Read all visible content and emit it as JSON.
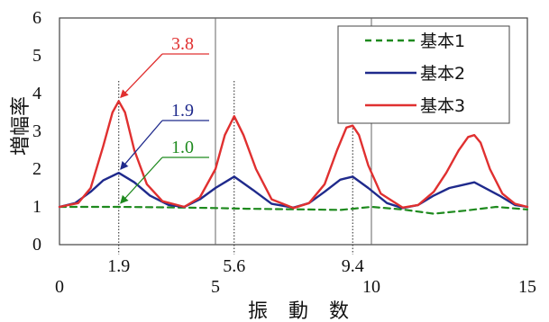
{
  "chart_data": {
    "type": "line",
    "xlabel": "振 動 数",
    "ylabel": "増幅率",
    "xlim": [
      0,
      15
    ],
    "ylim": [
      0,
      6
    ],
    "xticks": [
      "0",
      "5",
      "10",
      "15"
    ],
    "yticks": [
      "0",
      "1",
      "2",
      "3",
      "4",
      "5",
      "6"
    ],
    "grid": "vertical lines at 5 and 10",
    "legend_position": "top-right",
    "series": [
      {
        "name": "基本1",
        "style": "dashed",
        "color": "#1e8a1e",
        "x": [
          0,
          1,
          1.9,
          3,
          4,
          5,
          6,
          7,
          8,
          9,
          9.4,
          10,
          11,
          12,
          13,
          14,
          15
        ],
        "y": [
          1.0,
          1.0,
          1.0,
          0.99,
          0.98,
          0.97,
          0.95,
          0.94,
          0.93,
          0.92,
          0.95,
          1.0,
          0.93,
          0.82,
          0.9,
          1.0,
          0.93
        ]
      },
      {
        "name": "基本2",
        "style": "solid",
        "color": "#1f2a8c",
        "x": [
          0,
          0.5,
          1.0,
          1.4,
          1.9,
          2.4,
          2.9,
          3.5,
          4.0,
          4.5,
          5.0,
          5.6,
          6.2,
          6.8,
          7.5,
          8.0,
          8.5,
          9.0,
          9.4,
          9.9,
          10.5,
          11.0,
          11.5,
          12.0,
          12.5,
          13.3,
          14.1,
          14.6,
          15.0
        ],
        "y": [
          1.0,
          1.1,
          1.4,
          1.7,
          1.9,
          1.65,
          1.3,
          1.05,
          1.0,
          1.2,
          1.5,
          1.8,
          1.45,
          1.08,
          0.98,
          1.1,
          1.4,
          1.72,
          1.8,
          1.5,
          1.1,
          0.97,
          1.05,
          1.3,
          1.5,
          1.65,
          1.3,
          1.05,
          1.0
        ]
      },
      {
        "name": "基本3",
        "style": "solid",
        "color": "#e03030",
        "x": [
          0,
          0.6,
          1.0,
          1.4,
          1.7,
          1.9,
          2.1,
          2.4,
          2.8,
          3.3,
          4.0,
          4.5,
          5.0,
          5.3,
          5.6,
          5.9,
          6.3,
          6.8,
          7.5,
          8.0,
          8.5,
          8.9,
          9.2,
          9.4,
          9.6,
          9.9,
          10.3,
          11.0,
          11.5,
          12.0,
          12.4,
          12.8,
          13.1,
          13.3,
          13.5,
          13.8,
          14.2,
          14.6,
          15.0
        ],
        "y": [
          1.0,
          1.1,
          1.5,
          2.6,
          3.5,
          3.8,
          3.5,
          2.5,
          1.6,
          1.15,
          1.0,
          1.25,
          2.0,
          2.9,
          3.4,
          2.9,
          2.0,
          1.2,
          0.97,
          1.1,
          1.6,
          2.5,
          3.1,
          3.15,
          2.9,
          2.1,
          1.35,
          0.98,
          1.05,
          1.4,
          1.9,
          2.5,
          2.85,
          2.9,
          2.7,
          2.0,
          1.35,
          1.08,
          1.0
        ]
      }
    ],
    "reference_lines": [
      {
        "x": 1.9,
        "label": "1.9"
      },
      {
        "x": 5.6,
        "label": "5.6"
      },
      {
        "x": 9.4,
        "label": "9.4"
      }
    ],
    "annotations": [
      {
        "text": "3.8",
        "color": "#e03030",
        "x": 1.9,
        "y": 3.8
      },
      {
        "text": "1.9",
        "color": "#1f2a8c",
        "x": 1.9,
        "y": 1.9
      },
      {
        "text": "1.0",
        "color": "#1e8a1e",
        "x": 1.9,
        "y": 1.0
      }
    ]
  }
}
